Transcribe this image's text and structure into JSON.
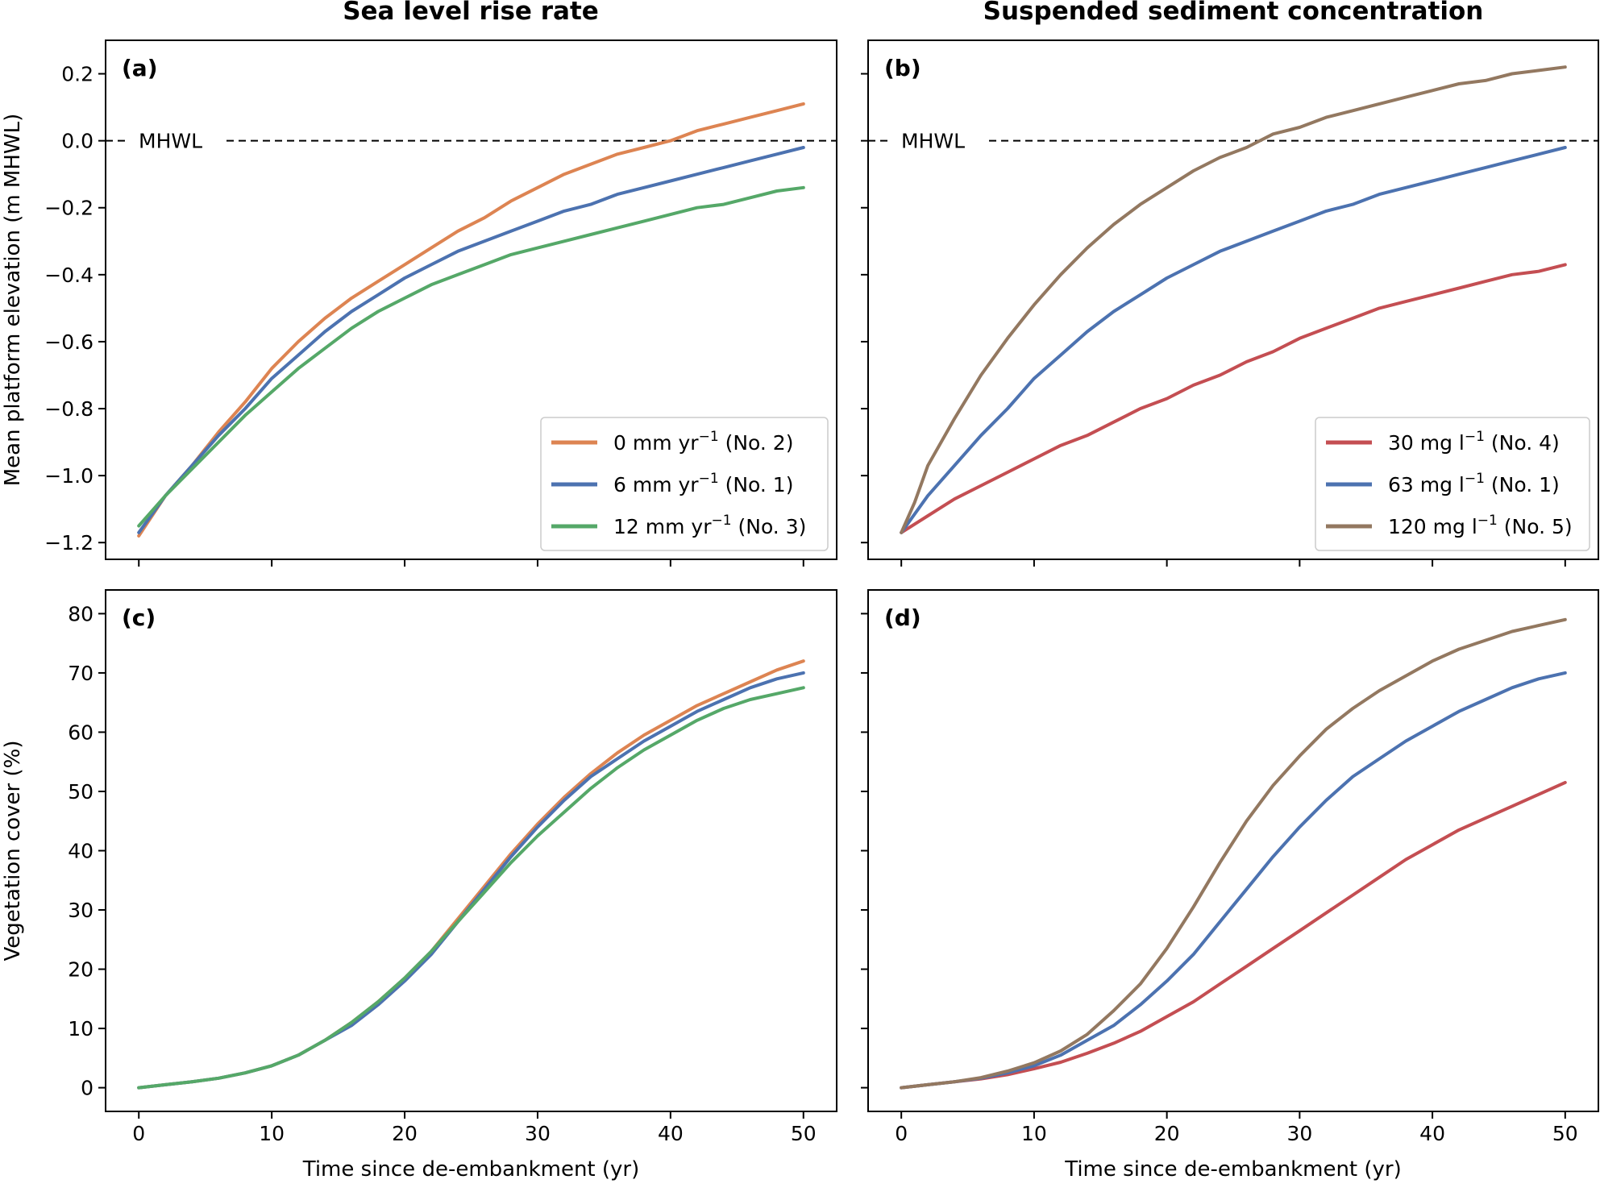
{
  "column_titles": [
    "Sea level rise rate",
    "Suspended sediment concentration"
  ],
  "colors": {
    "orange": "#dd8452",
    "blue": "#4c72b0",
    "green": "#55a868",
    "red": "#c44e52",
    "brown": "#937860"
  },
  "chart_data": [
    {
      "type": "line",
      "panel": "(a)",
      "ylabel": "Mean platform elevation (m MHWL)",
      "xlabel": "",
      "xlim": [
        -2.5,
        52.5
      ],
      "ylim": [
        -1.25,
        0.3
      ],
      "xticks": [
        0,
        10,
        20,
        30,
        40,
        50
      ],
      "yticks": [
        -1.2,
        -1.0,
        -0.8,
        -0.6,
        -0.4,
        -0.2,
        0.0,
        0.2
      ],
      "ytick_labels": [
        "−1.2",
        "−1.0",
        "−0.8",
        "−0.6",
        "−0.4",
        "−0.2",
        "0.0",
        "0.2"
      ],
      "reference_line": {
        "label": "MHWL",
        "y": 0.0,
        "style": "dashed"
      },
      "legend": {
        "placement": "lower-right"
      },
      "series": [
        {
          "name": "0 mm yr−1 (No. 2)",
          "legend_main": "0 mm yr",
          "legend_sup": "−1",
          "legend_tail": " (No. 2)",
          "color": "#dd8452",
          "x": [
            0,
            2,
            4,
            6,
            8,
            10,
            12,
            14,
            16,
            18,
            20,
            22,
            24,
            26,
            28,
            30,
            32,
            34,
            36,
            38,
            40,
            42,
            44,
            46,
            48,
            50
          ],
          "y": [
            -1.18,
            -1.06,
            -0.97,
            -0.87,
            -0.78,
            -0.68,
            -0.6,
            -0.53,
            -0.47,
            -0.42,
            -0.37,
            -0.32,
            -0.27,
            -0.23,
            -0.18,
            -0.14,
            -0.1,
            -0.07,
            -0.04,
            -0.02,
            0.0,
            0.03,
            0.05,
            0.07,
            0.09,
            0.11
          ]
        },
        {
          "name": "6 mm yr−1 (No. 1)",
          "legend_main": "6 mm yr",
          "legend_sup": "−1",
          "legend_tail": " (No. 1)",
          "color": "#4c72b0",
          "x": [
            0,
            2,
            4,
            6,
            8,
            10,
            12,
            14,
            16,
            18,
            20,
            22,
            24,
            26,
            28,
            30,
            32,
            34,
            36,
            38,
            40,
            42,
            44,
            46,
            48,
            50
          ],
          "y": [
            -1.17,
            -1.06,
            -0.97,
            -0.88,
            -0.8,
            -0.71,
            -0.64,
            -0.57,
            -0.51,
            -0.46,
            -0.41,
            -0.37,
            -0.33,
            -0.3,
            -0.27,
            -0.24,
            -0.21,
            -0.19,
            -0.16,
            -0.14,
            -0.12,
            -0.1,
            -0.08,
            -0.06,
            -0.04,
            -0.02
          ]
        },
        {
          "name": "12 mm yr−1 (No. 3)",
          "legend_main": "12 mm yr",
          "legend_sup": "−1",
          "legend_tail": " (No. 3)",
          "color": "#55a868",
          "x": [
            0,
            2,
            4,
            6,
            8,
            10,
            12,
            14,
            16,
            18,
            20,
            22,
            24,
            26,
            28,
            30,
            32,
            34,
            36,
            38,
            40,
            42,
            44,
            46,
            48,
            50
          ],
          "y": [
            -1.15,
            -1.06,
            -0.98,
            -0.9,
            -0.82,
            -0.75,
            -0.68,
            -0.62,
            -0.56,
            -0.51,
            -0.47,
            -0.43,
            -0.4,
            -0.37,
            -0.34,
            -0.32,
            -0.3,
            -0.28,
            -0.26,
            -0.24,
            -0.22,
            -0.2,
            -0.19,
            -0.17,
            -0.15,
            -0.14
          ]
        }
      ]
    },
    {
      "type": "line",
      "panel": "(b)",
      "ylabel": "",
      "xlabel": "",
      "xlim": [
        -2.5,
        52.5
      ],
      "ylim": [
        -1.25,
        0.3
      ],
      "xticks": [
        0,
        10,
        20,
        30,
        40,
        50
      ],
      "yticks": [
        -1.2,
        -1.0,
        -0.8,
        -0.6,
        -0.4,
        -0.2,
        0.0,
        0.2
      ],
      "reference_line": {
        "label": "MHWL",
        "y": 0.0,
        "style": "dashed"
      },
      "legend": {
        "placement": "lower-right"
      },
      "series": [
        {
          "name": "30 mg l−1 (No. 4)",
          "legend_main": "30 mg l",
          "legend_sup": "−1",
          "legend_tail": " (No. 4)",
          "color": "#c44e52",
          "x": [
            0,
            2,
            4,
            6,
            8,
            10,
            12,
            14,
            16,
            18,
            20,
            22,
            24,
            26,
            28,
            30,
            32,
            34,
            36,
            38,
            40,
            42,
            44,
            46,
            48,
            50
          ],
          "y": [
            -1.17,
            -1.12,
            -1.07,
            -1.03,
            -0.99,
            -0.95,
            -0.91,
            -0.88,
            -0.84,
            -0.8,
            -0.77,
            -0.73,
            -0.7,
            -0.66,
            -0.63,
            -0.59,
            -0.56,
            -0.53,
            -0.5,
            -0.48,
            -0.46,
            -0.44,
            -0.42,
            -0.4,
            -0.39,
            -0.37
          ]
        },
        {
          "name": "63 mg l−1 (No. 1)",
          "legend_main": "63 mg l",
          "legend_sup": "−1",
          "legend_tail": " (No. 1)",
          "color": "#4c72b0",
          "x": [
            0,
            2,
            4,
            6,
            8,
            10,
            12,
            14,
            16,
            18,
            20,
            22,
            24,
            26,
            28,
            30,
            32,
            34,
            36,
            38,
            40,
            42,
            44,
            46,
            48,
            50
          ],
          "y": [
            -1.17,
            -1.06,
            -0.97,
            -0.88,
            -0.8,
            -0.71,
            -0.64,
            -0.57,
            -0.51,
            -0.46,
            -0.41,
            -0.37,
            -0.33,
            -0.3,
            -0.27,
            -0.24,
            -0.21,
            -0.19,
            -0.16,
            -0.14,
            -0.12,
            -0.1,
            -0.08,
            -0.06,
            -0.04,
            -0.02
          ]
        },
        {
          "name": "120 mg l−1 (No. 5)",
          "legend_main": "120 mg l",
          "legend_sup": "−1",
          "legend_tail": " (No. 5)",
          "color": "#937860",
          "x": [
            0,
            1,
            2,
            4,
            6,
            8,
            10,
            12,
            14,
            16,
            18,
            20,
            22,
            24,
            26,
            28,
            30,
            32,
            34,
            36,
            38,
            40,
            42,
            44,
            46,
            48,
            50
          ],
          "y": [
            -1.17,
            -1.08,
            -0.97,
            -0.83,
            -0.7,
            -0.59,
            -0.49,
            -0.4,
            -0.32,
            -0.25,
            -0.19,
            -0.14,
            -0.09,
            -0.05,
            -0.02,
            0.02,
            0.04,
            0.07,
            0.09,
            0.11,
            0.13,
            0.15,
            0.17,
            0.18,
            0.2,
            0.21,
            0.22
          ]
        }
      ]
    },
    {
      "type": "line",
      "panel": "(c)",
      "ylabel": "Vegetation cover (%)",
      "xlabel": "Time since de-embankment (yr)",
      "xlim": [
        -2.5,
        52.5
      ],
      "ylim": [
        -4,
        84
      ],
      "xticks": [
        0,
        10,
        20,
        30,
        40,
        50
      ],
      "yticks": [
        0,
        10,
        20,
        30,
        40,
        50,
        60,
        70,
        80
      ],
      "series": [
        {
          "name": "0 mm yr−1 (No. 2)",
          "color": "#dd8452",
          "x": [
            0,
            2,
            4,
            6,
            8,
            10,
            12,
            14,
            16,
            18,
            20,
            22,
            24,
            26,
            28,
            30,
            32,
            34,
            36,
            38,
            40,
            42,
            44,
            46,
            48,
            50
          ],
          "y": [
            0,
            0.5,
            1.0,
            1.6,
            2.5,
            3.7,
            5.5,
            8.0,
            11.0,
            14.5,
            18.5,
            23.0,
            28.5,
            34.0,
            39.5,
            44.5,
            49.0,
            53.0,
            56.5,
            59.5,
            62.0,
            64.5,
            66.5,
            68.5,
            70.5,
            72.0
          ]
        },
        {
          "name": "6 mm yr−1 (No. 1)",
          "color": "#4c72b0",
          "x": [
            0,
            2,
            4,
            6,
            8,
            10,
            12,
            14,
            16,
            18,
            20,
            22,
            24,
            26,
            28,
            30,
            32,
            34,
            36,
            38,
            40,
            42,
            44,
            46,
            48,
            50
          ],
          "y": [
            0,
            0.5,
            1.0,
            1.6,
            2.5,
            3.7,
            5.5,
            8.0,
            10.5,
            14.0,
            18.0,
            22.5,
            28.0,
            33.5,
            39.0,
            44.0,
            48.5,
            52.5,
            55.5,
            58.5,
            61.0,
            63.5,
            65.5,
            67.5,
            69.0,
            70.0
          ]
        },
        {
          "name": "12 mm yr−1 (No. 3)",
          "color": "#55a868",
          "x": [
            0,
            2,
            4,
            6,
            8,
            10,
            12,
            14,
            16,
            18,
            20,
            22,
            24,
            26,
            28,
            30,
            32,
            34,
            36,
            38,
            40,
            42,
            44,
            46,
            48,
            50
          ],
          "y": [
            0,
            0.5,
            1.0,
            1.6,
            2.5,
            3.7,
            5.5,
            8.0,
            11.0,
            14.5,
            18.5,
            23.0,
            28.0,
            33.0,
            38.0,
            42.5,
            46.5,
            50.5,
            54.0,
            57.0,
            59.5,
            62.0,
            64.0,
            65.5,
            66.5,
            67.5
          ]
        }
      ]
    },
    {
      "type": "line",
      "panel": "(d)",
      "ylabel": "",
      "xlabel": "Time since de-embankment (yr)",
      "xlim": [
        -2.5,
        52.5
      ],
      "ylim": [
        -4,
        84
      ],
      "xticks": [
        0,
        10,
        20,
        30,
        40,
        50
      ],
      "yticks": [
        0,
        10,
        20,
        30,
        40,
        50,
        60,
        70,
        80
      ],
      "series": [
        {
          "name": "30 mg l−1 (No. 4)",
          "color": "#c44e52",
          "x": [
            0,
            2,
            4,
            6,
            8,
            10,
            12,
            14,
            16,
            18,
            20,
            22,
            24,
            26,
            28,
            30,
            32,
            34,
            36,
            38,
            40,
            42,
            44,
            46,
            48,
            50
          ],
          "y": [
            0,
            0.5,
            1.0,
            1.5,
            2.2,
            3.2,
            4.3,
            5.8,
            7.5,
            9.5,
            12.0,
            14.5,
            17.5,
            20.5,
            23.5,
            26.5,
            29.5,
            32.5,
            35.5,
            38.5,
            41.0,
            43.5,
            45.5,
            47.5,
            49.5,
            51.5
          ]
        },
        {
          "name": "63 mg l−1 (No. 1)",
          "color": "#4c72b0",
          "x": [
            0,
            2,
            4,
            6,
            8,
            10,
            12,
            14,
            16,
            18,
            20,
            22,
            24,
            26,
            28,
            30,
            32,
            34,
            36,
            38,
            40,
            42,
            44,
            46,
            48,
            50
          ],
          "y": [
            0,
            0.5,
            1.0,
            1.6,
            2.5,
            3.7,
            5.5,
            8.0,
            10.5,
            14.0,
            18.0,
            22.5,
            28.0,
            33.5,
            39.0,
            44.0,
            48.5,
            52.5,
            55.5,
            58.5,
            61.0,
            63.5,
            65.5,
            67.5,
            69.0,
            70.0
          ]
        },
        {
          "name": "120 mg l−1 (No. 5)",
          "color": "#937860",
          "x": [
            0,
            2,
            4,
            6,
            8,
            10,
            12,
            14,
            16,
            18,
            20,
            22,
            24,
            26,
            28,
            30,
            32,
            34,
            36,
            38,
            40,
            42,
            44,
            46,
            48,
            50
          ],
          "y": [
            0,
            0.5,
            1.0,
            1.7,
            2.8,
            4.2,
            6.2,
            9.0,
            13.0,
            17.5,
            23.5,
            30.5,
            38.0,
            45.0,
            51.0,
            56.0,
            60.5,
            64.0,
            67.0,
            69.5,
            72.0,
            74.0,
            75.5,
            77.0,
            78.0,
            79.0
          ]
        }
      ]
    }
  ]
}
